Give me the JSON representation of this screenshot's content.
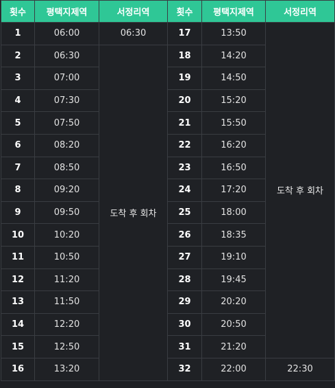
{
  "headers": [
    "횟수",
    "평택지제역",
    "서정리역",
    "횟수",
    "평택지제역",
    "서정리역"
  ],
  "left": {
    "nums": [
      "1",
      "2",
      "3",
      "4",
      "5",
      "6",
      "7",
      "8",
      "9",
      "10",
      "11",
      "12",
      "13",
      "14",
      "15",
      "16"
    ],
    "times": [
      "06:00",
      "06:30",
      "07:00",
      "07:30",
      "07:50",
      "08:20",
      "08:50",
      "09:20",
      "09:50",
      "10:20",
      "10:50",
      "11:20",
      "11:50",
      "12:20",
      "12:50",
      "13:20"
    ],
    "first_arrival": "06:30",
    "merged_label": "도착 후 회차"
  },
  "right": {
    "nums": [
      "17",
      "18",
      "19",
      "20",
      "21",
      "22",
      "23",
      "24",
      "25",
      "26",
      "27",
      "28",
      "29",
      "30",
      "31",
      "32"
    ],
    "times": [
      "13:50",
      "14:20",
      "14:50",
      "15:20",
      "15:50",
      "16:20",
      "16:50",
      "17:20",
      "18:00",
      "18:35",
      "19:10",
      "19:45",
      "20:20",
      "20:50",
      "21:20",
      "22:00"
    ],
    "merged_label": "도착 후 회차",
    "last_arrival": "22:30"
  },
  "colors": {
    "header_bg": "#2fc796",
    "body_bg": "#1f2125",
    "border": "#3a3d42"
  }
}
